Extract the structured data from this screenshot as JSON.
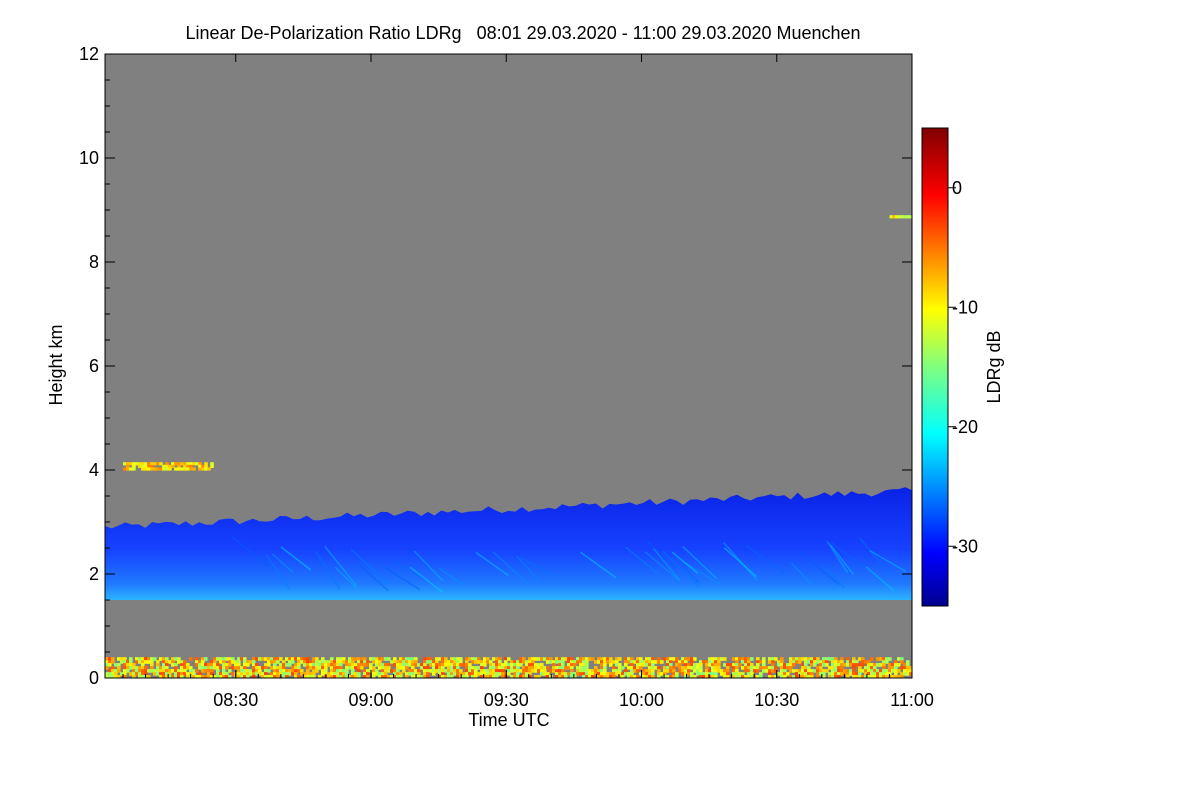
{
  "chart_data": {
    "type": "heatmap",
    "title": "Linear De-Polarization Ratio LDRg   08:01 29.03.2020 - 11:00 29.03.2020 Muenchen",
    "xlabel": "Time UTC",
    "ylabel": "Height km",
    "xlim_minutes_utc": [
      481,
      660
    ],
    "x_ticks": [
      {
        "minute": 510,
        "label": "08:30"
      },
      {
        "minute": 540,
        "label": "09:00"
      },
      {
        "minute": 570,
        "label": "09:30"
      },
      {
        "minute": 600,
        "label": "10:00"
      },
      {
        "minute": 630,
        "label": "10:30"
      },
      {
        "minute": 660,
        "label": "11:00"
      }
    ],
    "ylim": [
      0,
      12
    ],
    "y_ticks": [
      0,
      2,
      4,
      6,
      8,
      10,
      12
    ],
    "background_color": "#808080",
    "colorbar": {
      "label": "LDRg dB",
      "range": [
        -35,
        5
      ],
      "ticks": [
        0,
        -10,
        -20,
        -30
      ],
      "colormap": "jet"
    },
    "regions": [
      {
        "name": "aerosol layer",
        "x_start": 481,
        "x_end": 660,
        "y_bottom": 1.5,
        "y_top_range": [
          2.9,
          3.6
        ],
        "ldr_db_range": [
          -34,
          -22
        ]
      },
      {
        "name": "near-surface layer",
        "x_start": 481,
        "x_end": 660,
        "y_bottom": 0.0,
        "y_top": 0.4,
        "ldr_db_range": [
          -15,
          -3
        ]
      },
      {
        "name": "elevated layer segment",
        "x_start": 485,
        "x_end": 505,
        "y_bottom": 4.0,
        "y_top": 4.15,
        "ldr_db_range": [
          -12,
          -5
        ]
      },
      {
        "name": "high thin layer",
        "x_start": 655,
        "x_end": 660,
        "y_bottom": 8.85,
        "y_top": 8.9,
        "ldr_db_range": [
          -14,
          -6
        ]
      }
    ]
  }
}
